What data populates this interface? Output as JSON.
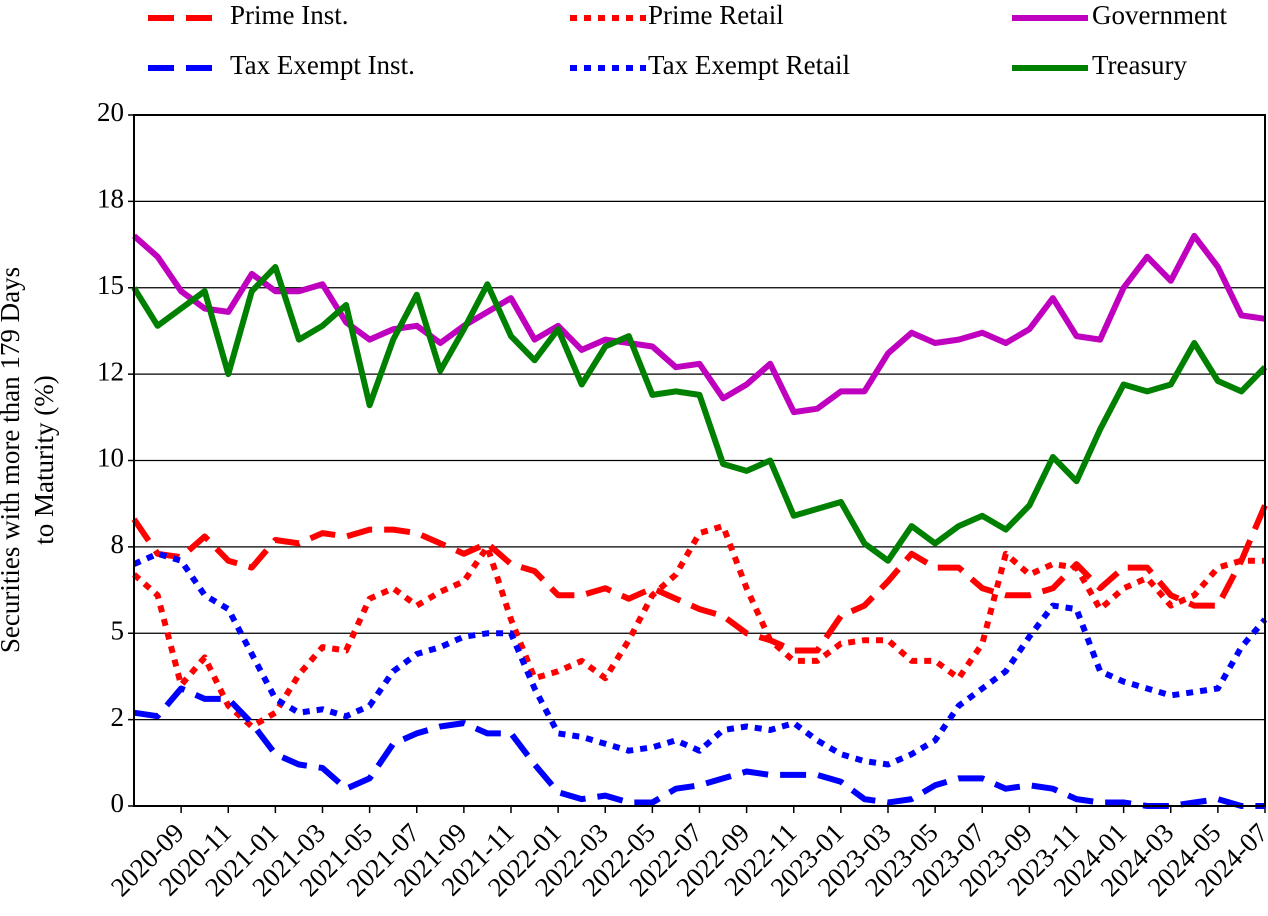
{
  "chart_data": {
    "type": "line",
    "ylabel": [
      "Securities with more than 179 Days",
      "to Maturity (%)"
    ],
    "categories": [
      null,
      null,
      "2020-09",
      null,
      "2020-11",
      null,
      "2021-01",
      null,
      "2021-03",
      null,
      "2021-05",
      null,
      "2021-07",
      null,
      "2021-09",
      null,
      "2021-11",
      null,
      "2022-01",
      null,
      "2022-03",
      null,
      "2022-05",
      null,
      "2022-07",
      null,
      "2022-09",
      null,
      "2022-11",
      null,
      "2023-01",
      null,
      "2023-03",
      null,
      "2023-05",
      null,
      "2023-07",
      null,
      "2023-09",
      null,
      "2023-11",
      null,
      "2024-01",
      null,
      "2024-03",
      null,
      "2024-05",
      null,
      "2024-07"
    ],
    "ylim": [
      0,
      20
    ],
    "yticks": [
      0,
      {
        "value": 2.5,
        "label": "2"
      },
      5,
      {
        "value": 7.5,
        "label": "8"
      },
      10,
      {
        "value": 12.5,
        "label": "12"
      },
      15,
      {
        "value": 17.5,
        "label": "18"
      },
      20
    ],
    "grid": true,
    "legend": "top",
    "series": [
      {
        "name": "Prime Inst.",
        "color": "#ff0000",
        "linestyle": "dashed",
        "values": [
          8.3,
          7.3,
          7.2,
          7.8,
          7.1,
          6.9,
          7.7,
          7.6,
          7.9,
          7.8,
          8.0,
          8.0,
          7.9,
          7.6,
          7.3,
          7.6,
          7.0,
          6.8,
          6.1,
          6.1,
          6.3,
          6.0,
          6.3,
          6.0,
          5.7,
          5.5,
          5.0,
          4.8,
          4.5,
          4.5,
          5.5,
          5.8,
          6.5,
          7.3,
          6.9,
          6.9,
          6.3,
          6.1,
          6.1,
          6.3,
          7.0,
          6.3,
          6.9,
          6.9,
          6.1,
          5.8,
          5.8,
          7.1,
          8.7
        ]
      },
      {
        "name": "Tax Exempt Inst.",
        "color": "#0000ff",
        "linestyle": "dashed",
        "values": [
          2.7,
          2.6,
          3.4,
          3.1,
          3.1,
          2.4,
          1.5,
          1.2,
          1.1,
          0.5,
          0.8,
          1.8,
          2.1,
          2.3,
          2.4,
          2.1,
          2.1,
          1.2,
          0.4,
          0.2,
          0.3,
          0.1,
          0.1,
          0.5,
          0.6,
          0.8,
          1.0,
          0.9,
          0.9,
          0.9,
          0.7,
          0.2,
          0.1,
          0.2,
          0.6,
          0.8,
          0.8,
          0.5,
          0.6,
          0.5,
          0.2,
          0.1,
          0.1,
          0.0,
          0.0,
          0.1,
          0.2,
          0.0,
          0.0
        ]
      },
      {
        "name": "Prime Retail",
        "color": "#ff0000",
        "linestyle": "dotted",
        "values": [
          6.7,
          6.1,
          3.5,
          4.3,
          2.9,
          2.3,
          2.7,
          3.8,
          4.6,
          4.5,
          6.0,
          6.3,
          5.8,
          6.2,
          6.5,
          7.5,
          5.4,
          3.7,
          3.9,
          4.2,
          3.7,
          4.8,
          6.1,
          6.7,
          7.9,
          8.1,
          6.3,
          4.8,
          4.2,
          4.2,
          4.7,
          4.8,
          4.8,
          4.2,
          4.2,
          3.7,
          4.7,
          7.3,
          6.7,
          7.0,
          6.9,
          5.7,
          6.3,
          6.6,
          5.8,
          6.1,
          6.9,
          7.1,
          7.1
        ]
      },
      {
        "name": "Tax Exempt Retail",
        "color": "#0000ff",
        "linestyle": "dotted",
        "values": [
          7.0,
          7.3,
          7.1,
          6.1,
          5.7,
          4.4,
          3.1,
          2.7,
          2.8,
          2.6,
          2.9,
          3.9,
          4.4,
          4.6,
          4.9,
          5.0,
          5.0,
          3.4,
          2.1,
          2.0,
          1.8,
          1.6,
          1.7,
          1.9,
          1.6,
          2.2,
          2.3,
          2.2,
          2.4,
          1.9,
          1.5,
          1.3,
          1.2,
          1.5,
          1.9,
          2.9,
          3.4,
          3.9,
          4.9,
          5.8,
          5.7,
          3.9,
          3.6,
          3.4,
          3.2,
          3.3,
          3.4,
          4.6,
          5.4
        ]
      },
      {
        "name": "Government",
        "color": "#bf00bf",
        "linestyle": "solid",
        "values": [
          16.5,
          15.9,
          14.9,
          14.4,
          14.3,
          15.4,
          14.9,
          14.9,
          15.1,
          14.0,
          13.5,
          13.8,
          13.9,
          13.4,
          13.9,
          14.3,
          14.7,
          13.5,
          13.9,
          13.2,
          13.5,
          13.4,
          13.3,
          12.7,
          12.8,
          11.8,
          12.2,
          12.8,
          11.4,
          11.5,
          12.0,
          12.0,
          13.1,
          13.7,
          13.4,
          13.5,
          13.7,
          13.4,
          13.8,
          14.7,
          13.6,
          13.5,
          15.0,
          15.9,
          15.2,
          16.5,
          15.6,
          14.2,
          14.1
        ]
      },
      {
        "name": "Treasury",
        "color": "#008000",
        "linestyle": "solid",
        "values": [
          15.0,
          13.9,
          14.4,
          14.9,
          12.5,
          14.9,
          15.6,
          13.5,
          13.9,
          14.5,
          11.6,
          13.5,
          14.8,
          12.6,
          13.8,
          15.1,
          13.6,
          12.9,
          13.8,
          12.2,
          13.3,
          13.6,
          11.9,
          12.0,
          11.9,
          9.9,
          9.7,
          10.0,
          8.4,
          8.6,
          8.8,
          7.6,
          7.1,
          8.1,
          7.6,
          8.1,
          8.4,
          8.0,
          8.7,
          10.1,
          9.4,
          10.9,
          12.2,
          12.0,
          12.2,
          13.4,
          12.3,
          12.0,
          12.7
        ]
      }
    ]
  }
}
